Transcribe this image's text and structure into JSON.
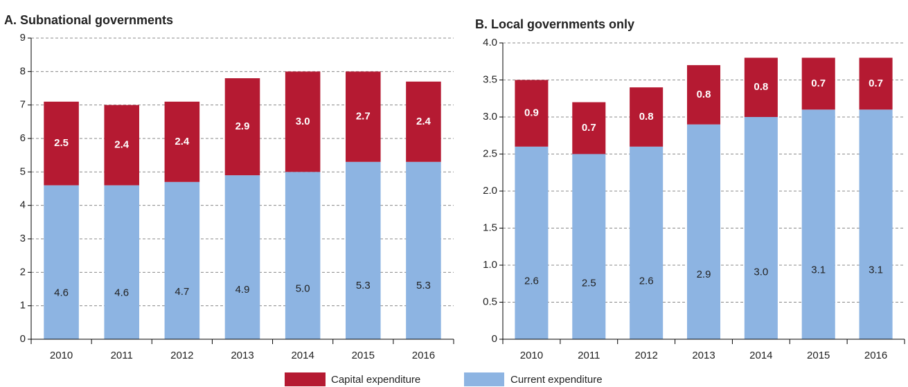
{
  "chart_data": [
    {
      "type": "stacked_bar",
      "title": "A. Subnational governments",
      "categories": [
        "2010",
        "2011",
        "2012",
        "2013",
        "2014",
        "2015",
        "2016"
      ],
      "series": [
        {
          "name": "Current expenditure",
          "color": "#8db4e2",
          "values": [
            4.6,
            4.6,
            4.7,
            4.9,
            5.0,
            5.3,
            5.3
          ],
          "value_labels": [
            "4.6",
            "4.6",
            "4.7",
            "4.9",
            "5.0",
            "5.3",
            "5.3"
          ]
        },
        {
          "name": "Capital expenditure",
          "color": "#b51a32",
          "values": [
            2.5,
            2.4,
            2.4,
            2.9,
            3.0,
            2.7,
            2.4
          ],
          "value_labels": [
            "2.5",
            "2.4",
            "2.4",
            "2.9",
            "3.0",
            "2.7",
            "2.4"
          ]
        }
      ],
      "ylim": [
        0,
        9
      ],
      "yticks": [
        0,
        1,
        2,
        3,
        4,
        5,
        6,
        7,
        8,
        9
      ],
      "grid": true
    },
    {
      "type": "stacked_bar",
      "title": "B. Local governments only",
      "categories": [
        "2010",
        "2011",
        "2012",
        "2013",
        "2014",
        "2015",
        "2016"
      ],
      "series": [
        {
          "color": "#8db4e2",
          "values": [
            2.6,
            2.5,
            2.6,
            2.9,
            3.0,
            3.1,
            3.1
          ],
          "value_labels": [
            "2.6",
            "2.5",
            "2.6",
            "2.9",
            "3.0",
            "3.1",
            "3.1"
          ]
        },
        {
          "color": "#b51a32",
          "values": [
            0.9,
            0.7,
            0.8,
            0.8,
            0.8,
            0.7,
            0.7
          ],
          "value_labels": [
            "0.9",
            "0.7",
            "0.8",
            "0.8",
            "0.8",
            "0.7",
            "0.7"
          ]
        }
      ],
      "ylim": [
        0,
        4
      ],
      "yticks": [
        0,
        0.5,
        {
          "value": 1,
          "label": "1.0"
        },
        1.5,
        {
          "value": 2,
          "label": "2.0"
        },
        2.5,
        {
          "value": 3,
          "label": "3.0"
        },
        3.5,
        {
          "value": 4,
          "label": "4.0"
        }
      ],
      "grid": true
    }
  ]
}
